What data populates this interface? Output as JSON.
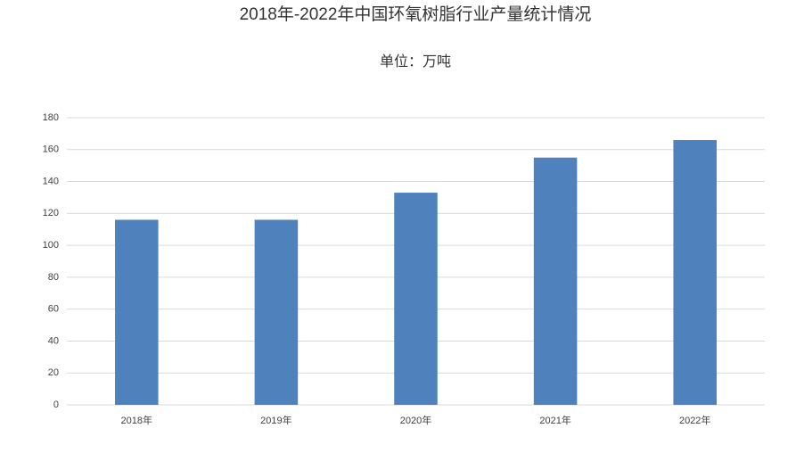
{
  "chart_data": {
    "type": "bar",
    "title": "2018年-2022年中国环氧树脂行业产量统计情况",
    "subtitle": "单位：万吨",
    "categories": [
      "2018年",
      "2019年",
      "2020年",
      "2021年",
      "2022年"
    ],
    "values": [
      116,
      116,
      133,
      155,
      166
    ],
    "color": "#4f81bd",
    "ylim": [
      0,
      180
    ],
    "yticks": [
      0,
      20,
      40,
      60,
      80,
      100,
      120,
      140,
      160,
      180
    ],
    "grid": true
  }
}
